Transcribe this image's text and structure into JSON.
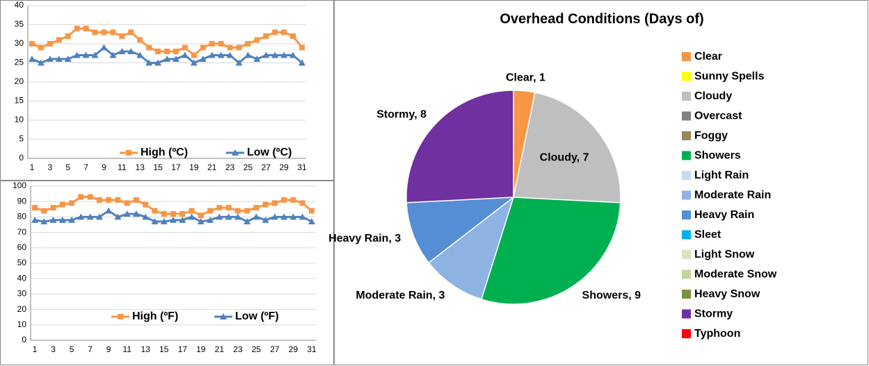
{
  "chart_data": [
    {
      "type": "line",
      "categories": [
        1,
        null,
        3,
        null,
        5,
        null,
        7,
        null,
        9,
        null,
        11,
        null,
        13,
        null,
        15,
        null,
        17,
        null,
        19,
        null,
        21,
        null,
        23,
        null,
        25,
        null,
        27,
        null,
        29,
        null,
        31
      ],
      "series": [
        {
          "name": "High (ºC)",
          "color": "#f79646",
          "marker": "square",
          "values": [
            30,
            29,
            30,
            31,
            32,
            34,
            34,
            33,
            33,
            33,
            32,
            33,
            31,
            29,
            28,
            28,
            28,
            29,
            27,
            29,
            30,
            30,
            29,
            29,
            30,
            31,
            32,
            33,
            33,
            32,
            29
          ]
        },
        {
          "name": "Low (ºC)",
          "color": "#4f81bd",
          "marker": "triangle",
          "values": [
            26,
            25,
            26,
            26,
            26,
            27,
            27,
            27,
            29,
            27,
            28,
            28,
            27,
            25,
            25,
            26,
            26,
            27,
            25,
            26,
            27,
            27,
            27,
            25,
            27,
            26,
            27,
            27,
            27,
            27,
            25
          ]
        }
      ],
      "ylim": [
        0,
        40
      ],
      "yticks": [
        0,
        5,
        10,
        15,
        20,
        25,
        30,
        35,
        40
      ],
      "grid": true,
      "legend": "bottom"
    },
    {
      "type": "line",
      "categories": [
        1,
        null,
        3,
        null,
        5,
        null,
        7,
        null,
        9,
        null,
        11,
        null,
        13,
        null,
        15,
        null,
        17,
        null,
        19,
        null,
        21,
        null,
        23,
        null,
        25,
        null,
        27,
        null,
        29,
        null,
        31
      ],
      "series": [
        {
          "name": "High (ºF)",
          "color": "#f79646",
          "marker": "square",
          "values": [
            86,
            84,
            86,
            88,
            89,
            93,
            93,
            91,
            91,
            91,
            89,
            91,
            88,
            84,
            82,
            82,
            82,
            84,
            81,
            84,
            86,
            86,
            84,
            84,
            86,
            88,
            89,
            91,
            91,
            89,
            84
          ]
        },
        {
          "name": "Low (ºF)",
          "color": "#4f81bd",
          "marker": "triangle",
          "values": [
            78,
            77,
            78,
            78,
            78,
            80,
            80,
            80,
            84,
            80,
            82,
            82,
            80,
            77,
            77,
            78,
            78,
            80,
            77,
            78,
            80,
            80,
            80,
            77,
            80,
            78,
            80,
            80,
            80,
            80,
            77
          ]
        }
      ],
      "ylim": [
        0,
        100
      ],
      "yticks": [
        0,
        10,
        20,
        30,
        40,
        50,
        60,
        70,
        80,
        90,
        100
      ],
      "grid": true,
      "legend": "bottom"
    },
    {
      "type": "pie",
      "title": "Overhead Conditions (Days of)",
      "categories": [
        "Clear",
        "Sunny Spells",
        "Cloudy",
        "Overcast",
        "Foggy",
        "Showers",
        "Light Rain",
        "Moderate Rain",
        "Heavy Rain",
        "Sleet",
        "Light Snow",
        "Moderate Snow",
        "Heavy Snow",
        "Stormy",
        "Typhoon"
      ],
      "values": [
        1,
        0,
        7,
        0,
        0,
        9,
        0,
        3,
        3,
        0,
        0,
        0,
        0,
        8,
        0
      ],
      "value_labels": [
        "Clear, 1",
        null,
        "Cloudy, 7",
        null,
        null,
        "Showers, 9",
        null,
        "Moderate Rain, 3",
        "Heavy Rain, 3",
        null,
        null,
        null,
        null,
        "Stormy, 8",
        null
      ],
      "colors": [
        "#f79646",
        "#ffff00",
        "#bfbfbf",
        "#808080",
        "#948a54",
        "#00b050",
        "#c6d9f1",
        "#8db3e2",
        "#558ed5",
        "#00b0f0",
        "#d7e4bd",
        "#c3d69b",
        "#77933c",
        "#7030a0",
        "#ff0000"
      ],
      "legend": "right"
    }
  ]
}
